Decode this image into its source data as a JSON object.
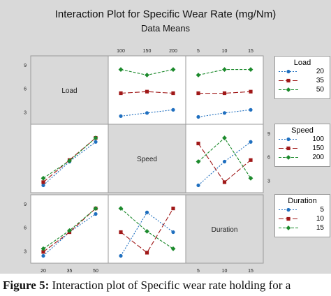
{
  "title": "Interaction Plot for Specific  Wear Rate (mg/Nm)",
  "subtitle": "Data Means",
  "caption": {
    "label": "Figure 5:",
    "text": " Interaction plot of Specific wear rate holding for a"
  },
  "chart_data": {
    "type": "line",
    "y_ticks": [
      "3",
      "6",
      "9"
    ],
    "ylim": [
      2,
      9.6
    ],
    "factors": [
      {
        "name": "Load",
        "levels": [
          "20",
          "35",
          "50"
        ],
        "tick_labels": [
          "20",
          "35",
          "50"
        ],
        "colors": [
          "#1f6fbf",
          "#a01818",
          "#1c8a2c"
        ],
        "markers": [
          "circle",
          "square",
          "diamond"
        ]
      },
      {
        "name": "Speed",
        "levels": [
          "100",
          "150",
          "200"
        ],
        "tick_labels": [
          "100",
          "150",
          "200"
        ],
        "colors": [
          "#1f6fbf",
          "#a01818",
          "#1c8a2c"
        ],
        "markers": [
          "circle",
          "square",
          "diamond"
        ]
      },
      {
        "name": "Duration",
        "levels": [
          "5",
          "10",
          "15"
        ],
        "tick_labels": [
          "5",
          "10",
          "15"
        ],
        "colors": [
          "#1f6fbf",
          "#a01818",
          "#1c8a2c"
        ],
        "markers": [
          "circle",
          "square",
          "diamond"
        ]
      }
    ],
    "panels": [
      {
        "row": 0,
        "col": 1,
        "x_factor": "Speed",
        "trace_factor": "Load",
        "series": [
          {
            "name": "20",
            "values": [
              2.5,
              2.9,
              3.3
            ]
          },
          {
            "name": "35",
            "values": [
              5.4,
              5.6,
              5.4
            ]
          },
          {
            "name": "50",
            "values": [
              8.4,
              7.7,
              8.4
            ]
          }
        ]
      },
      {
        "row": 0,
        "col": 2,
        "x_factor": "Duration",
        "trace_factor": "Load",
        "series": [
          {
            "name": "20",
            "values": [
              2.4,
              2.9,
              3.3
            ]
          },
          {
            "name": "35",
            "values": [
              5.4,
              5.4,
              5.6
            ]
          },
          {
            "name": "50",
            "values": [
              7.7,
              8.4,
              8.4
            ]
          }
        ]
      },
      {
        "row": 1,
        "col": 0,
        "x_factor": "Load",
        "trace_factor": "Speed",
        "series": [
          {
            "name": "100",
            "values": [
              2.4,
              5.4,
              7.9
            ]
          },
          {
            "name": "150",
            "values": [
              2.8,
              5.6,
              8.4
            ]
          },
          {
            "name": "200",
            "values": [
              3.3,
              5.5,
              8.4
            ]
          }
        ]
      },
      {
        "row": 1,
        "col": 2,
        "x_factor": "Duration",
        "trace_factor": "Speed",
        "series": [
          {
            "name": "100",
            "values": [
              2.4,
              5.4,
              7.9
            ]
          },
          {
            "name": "150",
            "values": [
              7.7,
              2.8,
              5.6
            ]
          },
          {
            "name": "200",
            "values": [
              5.4,
              8.4,
              3.3
            ]
          }
        ]
      },
      {
        "row": 2,
        "col": 0,
        "x_factor": "Load",
        "trace_factor": "Duration",
        "series": [
          {
            "name": "5",
            "values": [
              2.4,
              5.4,
              7.7
            ]
          },
          {
            "name": "10",
            "values": [
              2.9,
              5.4,
              8.4
            ]
          },
          {
            "name": "15",
            "values": [
              3.3,
              5.6,
              8.4
            ]
          }
        ]
      },
      {
        "row": 2,
        "col": 1,
        "x_factor": "Speed",
        "trace_factor": "Duration",
        "series": [
          {
            "name": "5",
            "values": [
              2.4,
              7.9,
              5.4
            ]
          },
          {
            "name": "10",
            "values": [
              5.4,
              2.8,
              8.4
            ]
          },
          {
            "name": "15",
            "values": [
              8.4,
              5.5,
              3.3
            ]
          }
        ]
      }
    ],
    "legends": [
      {
        "title": "Load",
        "entries": [
          "20",
          "35",
          "50"
        ]
      },
      {
        "title": "Speed",
        "entries": [
          "100",
          "150",
          "200"
        ]
      },
      {
        "title": "Duration",
        "entries": [
          "5",
          "10",
          "15"
        ]
      }
    ],
    "grid": false,
    "legend_position": "right"
  }
}
